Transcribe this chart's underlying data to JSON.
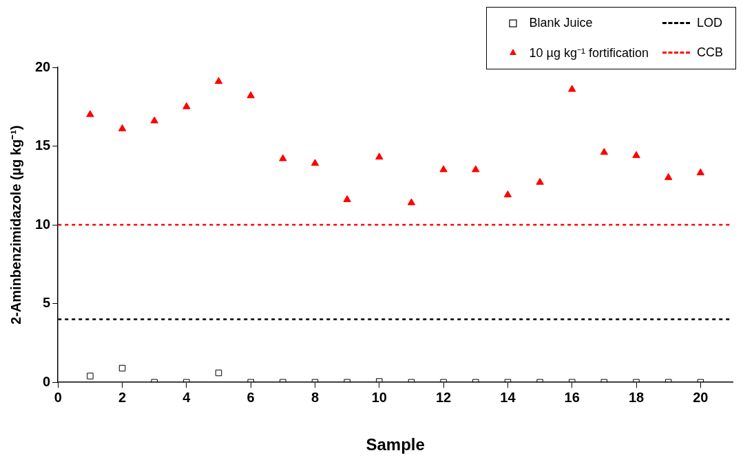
{
  "chart_data": {
    "type": "scatter",
    "xlabel": "Sample",
    "ylabel": "2-Aminbenzimidazole (µg kg⁻¹)",
    "x": [
      1,
      2,
      3,
      4,
      5,
      6,
      7,
      8,
      9,
      10,
      11,
      12,
      13,
      14,
      15,
      16,
      17,
      18,
      19,
      20
    ],
    "series": [
      {
        "name": "Blank Juice",
        "color": "#000000",
        "marker": "square",
        "values": [
          0.4,
          0.9,
          0,
          0,
          0.6,
          0,
          0,
          0,
          0,
          0.05,
          0,
          0,
          0,
          0,
          0,
          0,
          0,
          0,
          0,
          0
        ]
      },
      {
        "name": "10 µg kg⁻¹ fortification",
        "color": "#ff0000",
        "marker": "triangle",
        "values": [
          17.0,
          16.1,
          16.6,
          17.5,
          19.1,
          18.2,
          14.2,
          13.9,
          11.6,
          14.3,
          11.4,
          13.5,
          13.5,
          11.9,
          12.7,
          18.6,
          14.6,
          14.4,
          13.0,
          13.3
        ]
      }
    ],
    "ref_lines": [
      {
        "axis": "y",
        "value": 4,
        "label": "LOD",
        "color": "#000000",
        "line_style": "dashed"
      },
      {
        "axis": "y",
        "value": 10,
        "label": "CCB",
        "color": "#ff0000",
        "line_style": "dashed"
      }
    ],
    "xlim": [
      0,
      21
    ],
    "xticks": [
      0,
      2,
      4,
      6,
      8,
      10,
      12,
      14,
      16,
      18,
      20
    ],
    "ylim": [
      0,
      20
    ],
    "yticks": [
      0,
      5,
      10,
      15,
      20
    ],
    "grid": false,
    "legend": "top right"
  }
}
